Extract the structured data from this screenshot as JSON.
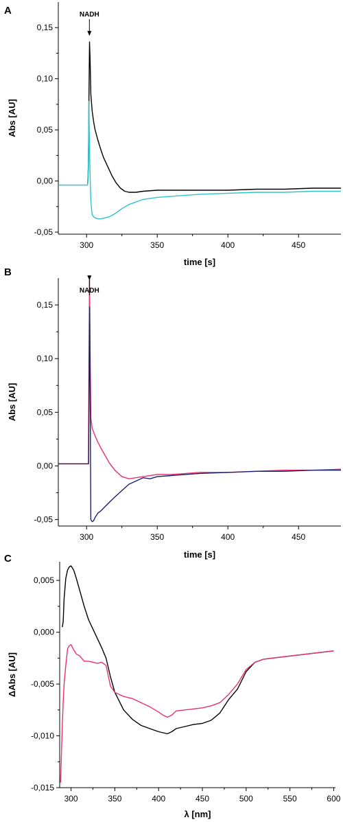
{
  "chart_data": [
    {
      "panel": "A",
      "type": "line",
      "xlabel": "time [s]",
      "ylabel": "Abs [AU]",
      "xlim": [
        280,
        480
      ],
      "ylim": [
        -0.052,
        0.175
      ],
      "x_ticks": [
        300,
        350,
        400,
        450
      ],
      "x_tick_labels": [
        "300",
        "350",
        "400",
        "450"
      ],
      "y_ticks": [
        -0.05,
        0,
        0.05,
        0.1,
        0.15
      ],
      "y_tick_labels": [
        "-0,05",
        "0,00",
        "0,05",
        "0,10",
        "0,15"
      ],
      "annotation": {
        "text": "NADH",
        "x": 302,
        "arrow_tip_y": 0.142
      },
      "series": [
        {
          "color": "#000000",
          "x": [
            300.8,
            301.3,
            301.7,
            302.1,
            302.5,
            303,
            304,
            305,
            306,
            308,
            310,
            312,
            315,
            318,
            321,
            324,
            327,
            330,
            335,
            340,
            350,
            360,
            380,
            400,
            420,
            440,
            460,
            480
          ],
          "y": [
            -0.003,
            0.015,
            0.085,
            0.136,
            0.12,
            0.085,
            0.068,
            0.058,
            0.05,
            0.04,
            0.031,
            0.023,
            0.014,
            0.005,
            -0.002,
            -0.007,
            -0.01,
            -0.011,
            -0.011,
            -0.01,
            -0.009,
            -0.009,
            -0.009,
            -0.009,
            -0.008,
            -0.008,
            -0.007,
            -0.007
          ]
        },
        {
          "color": "#2ec4c8",
          "x": [
            280,
            285,
            290,
            295,
            298,
            300,
            300.8,
            301.3,
            301.6,
            302,
            302.5,
            303,
            303.5,
            304,
            305,
            306,
            308,
            310,
            313,
            316,
            320,
            325,
            330,
            340,
            350,
            360,
            380,
            400,
            420,
            440,
            460,
            480
          ],
          "y": [
            -0.004,
            -0.004,
            -0.004,
            -0.004,
            -0.004,
            -0.004,
            -0.004,
            0.02,
            0.078,
            0.04,
            0.005,
            -0.018,
            -0.027,
            -0.033,
            -0.035,
            -0.036,
            -0.037,
            -0.037,
            -0.036,
            -0.035,
            -0.032,
            -0.027,
            -0.023,
            -0.018,
            -0.016,
            -0.015,
            -0.013,
            -0.012,
            -0.011,
            -0.011,
            -0.01,
            -0.01
          ]
        }
      ]
    },
    {
      "panel": "B",
      "type": "line",
      "xlabel": "time [s]",
      "ylabel": "Abs [AU]",
      "xlim": [
        280,
        480
      ],
      "ylim": [
        -0.056,
        0.175
      ],
      "x_ticks": [
        300,
        350,
        400,
        450
      ],
      "x_tick_labels": [
        "300",
        "350",
        "400",
        "450"
      ],
      "y_ticks": [
        -0.05,
        0,
        0.05,
        0.1,
        0.15
      ],
      "y_tick_labels": [
        "-0,05",
        "0,00",
        "0,05",
        "0,10",
        "0,15"
      ],
      "annotation": {
        "text": "NADH",
        "x": 302,
        "arrow_tip_y": 0.173
      },
      "series": [
        {
          "color": "#e8306e",
          "x": [
            280,
            290,
            300,
            301.3,
            301.7,
            302.1,
            302.5,
            303,
            304,
            306,
            308,
            310,
            313,
            316,
            320,
            325,
            330,
            340,
            350,
            360,
            380,
            400,
            420,
            440,
            460,
            480
          ],
          "y": [
            0.002,
            0.002,
            0.002,
            0.002,
            0.1,
            0.175,
            0.11,
            0.045,
            0.035,
            0.028,
            0.022,
            0.017,
            0.01,
            0.003,
            -0.004,
            -0.01,
            -0.012,
            -0.01,
            -0.008,
            -0.008,
            -0.006,
            -0.006,
            -0.005,
            -0.004,
            -0.004,
            -0.003
          ]
        },
        {
          "color": "#1c1f6e",
          "x": [
            280,
            290,
            300,
            301.4,
            301.8,
            302.2,
            302.6,
            303,
            304,
            305,
            306,
            308,
            310,
            313,
            316,
            320,
            325,
            330,
            340,
            345,
            350,
            360,
            380,
            400,
            420,
            440,
            460,
            480
          ],
          "y": [
            0.002,
            0.002,
            0.002,
            0.002,
            0.08,
            0.148,
            0.05,
            -0.05,
            -0.052,
            -0.051,
            -0.048,
            -0.044,
            -0.042,
            -0.038,
            -0.034,
            -0.029,
            -0.023,
            -0.017,
            -0.011,
            -0.012,
            -0.01,
            -0.009,
            -0.007,
            -0.006,
            -0.005,
            -0.005,
            -0.004,
            -0.004
          ]
        }
      ]
    },
    {
      "panel": "C",
      "type": "line",
      "xlabel": "λ [nm]",
      "ylabel": "ΔAbs [AU]",
      "xlim": [
        287,
        602
      ],
      "ylim": [
        -0.015,
        0.0068
      ],
      "x_ticks": [
        300,
        350,
        400,
        450,
        500,
        550,
        600
      ],
      "x_tick_labels": [
        "300",
        "350",
        "400",
        "450",
        "500",
        "550",
        "600"
      ],
      "y_ticks": [
        -0.015,
        -0.01,
        -0.005,
        0,
        0.005
      ],
      "y_tick_labels": [
        "-0,015",
        "-0,010",
        "-0,005",
        "0,000",
        "0,005"
      ],
      "series": [
        {
          "color": "#000000",
          "x": [
            290,
            291,
            292,
            294,
            296,
            298,
            300,
            303,
            306,
            310,
            315,
            320,
            325,
            330,
            335,
            340,
            345,
            350,
            360,
            370,
            380,
            390,
            400,
            410,
            415,
            420,
            430,
            440,
            450,
            460,
            470,
            480,
            490,
            500,
            510,
            520,
            540,
            560,
            580,
            600
          ],
          "y": [
            0.0005,
            0.001,
            0.0032,
            0.0052,
            0.006,
            0.0063,
            0.0064,
            0.006,
            0.0052,
            0.004,
            0.0025,
            0.0012,
            0.0003,
            -0.0006,
            -0.0015,
            -0.0025,
            -0.0043,
            -0.0058,
            -0.0075,
            -0.0084,
            -0.009,
            -0.0093,
            -0.0096,
            -0.0098,
            -0.0096,
            -0.0093,
            -0.0091,
            -0.0089,
            -0.0088,
            -0.0085,
            -0.0078,
            -0.0065,
            -0.0055,
            -0.0038,
            -0.0029,
            -0.0026,
            -0.0024,
            -0.0022,
            -0.002,
            -0.0018
          ]
        },
        {
          "color": "#e8306e",
          "x": [
            288,
            290,
            291,
            292,
            294,
            296,
            298,
            300,
            303,
            306,
            310,
            315,
            320,
            325,
            330,
            335,
            340,
            345,
            350,
            360,
            370,
            380,
            390,
            400,
            405,
            410,
            415,
            420,
            430,
            440,
            450,
            460,
            470,
            480,
            490,
            500,
            510,
            520,
            540,
            560,
            580,
            600
          ],
          "y": [
            -0.0145,
            -0.009,
            -0.0068,
            -0.005,
            -0.0032,
            -0.0016,
            -0.0013,
            -0.0012,
            -0.0017,
            -0.0021,
            -0.0023,
            -0.0028,
            -0.0028,
            -0.0029,
            -0.003,
            -0.0029,
            -0.0032,
            -0.0052,
            -0.0058,
            -0.0062,
            -0.0064,
            -0.0068,
            -0.0072,
            -0.0077,
            -0.008,
            -0.0082,
            -0.008,
            -0.0076,
            -0.0075,
            -0.0074,
            -0.0073,
            -0.0071,
            -0.0068,
            -0.006,
            -0.005,
            -0.0036,
            -0.0029,
            -0.0026,
            -0.0024,
            -0.0022,
            -0.002,
            -0.0018
          ]
        }
      ]
    }
  ]
}
